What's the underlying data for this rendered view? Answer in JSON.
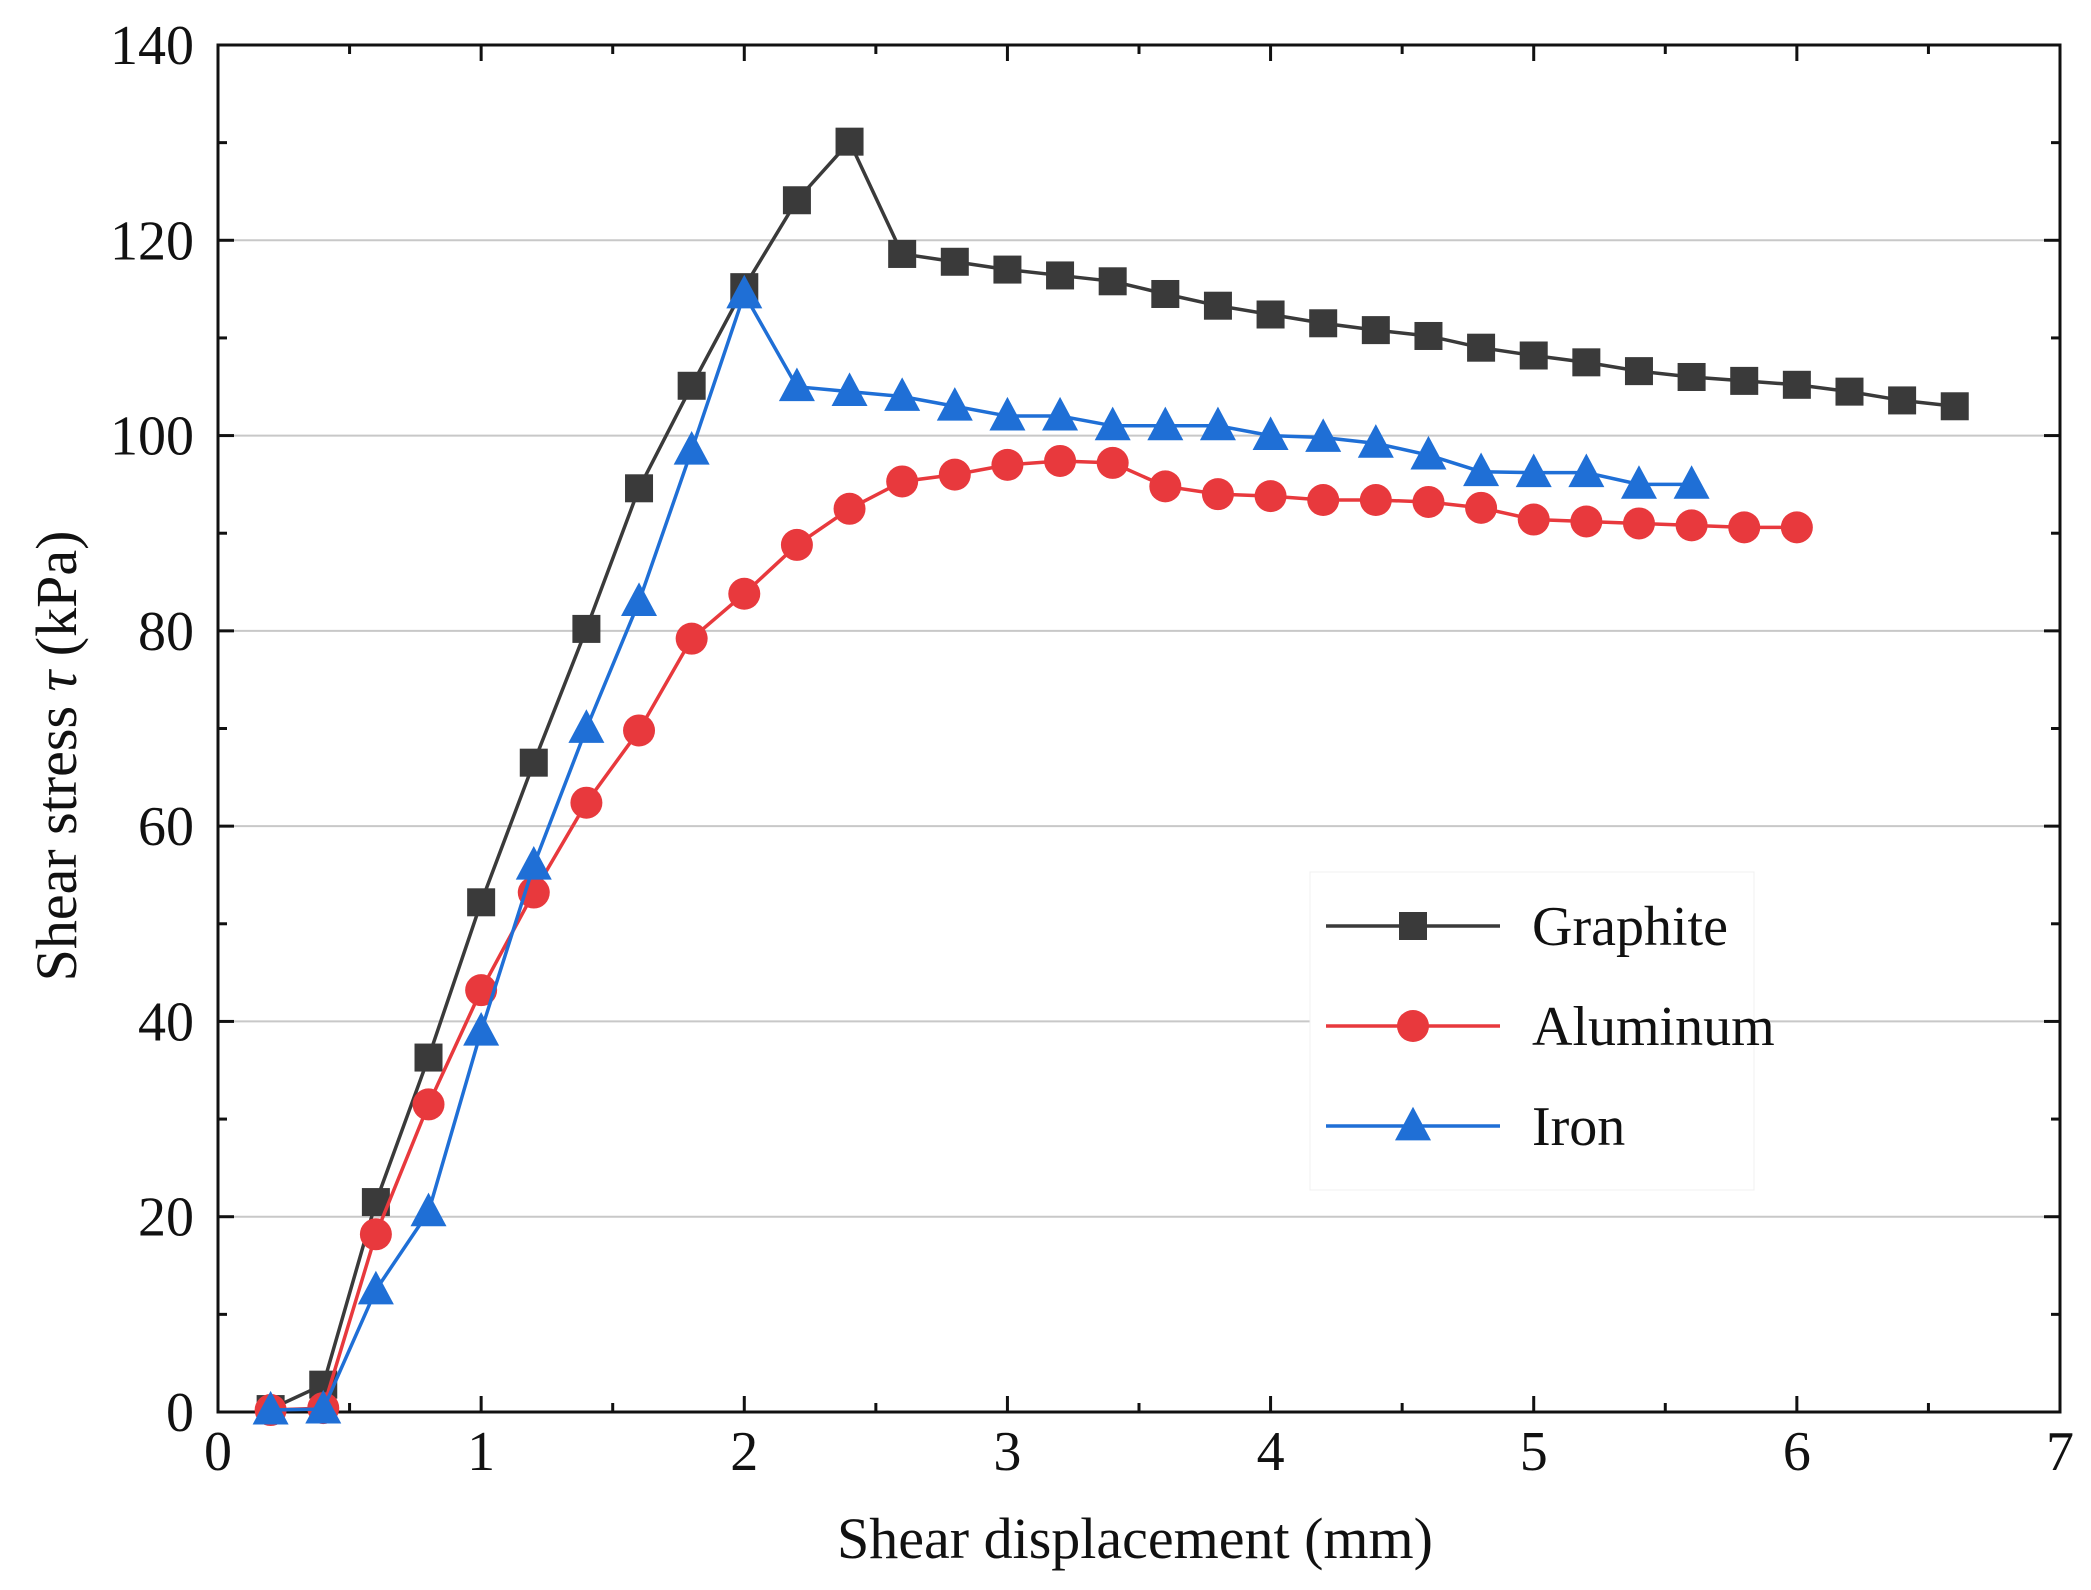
{
  "colors": {
    "Graphite": "#3a3a3a",
    "Aluminum": "#e8393d",
    "Iron": "#1f6fd6",
    "grid": "#c8c8c8",
    "axis": "#111111"
  },
  "chart_data": {
    "type": "line",
    "title": "",
    "xlabel": "Shear displacement (mm)",
    "ylabel_prefix": "Shear stress ",
    "ylabel_symbol": "τ",
    "ylabel_suffix": " (kPa)",
    "xlim": [
      0,
      7
    ],
    "ylim": [
      0,
      140
    ],
    "xticks": [
      0,
      1,
      2,
      3,
      4,
      5,
      6,
      7
    ],
    "yticks": [
      0,
      20,
      40,
      60,
      80,
      100,
      120,
      140
    ],
    "grid": "horizontal",
    "legend_position": "right-middle",
    "series": [
      {
        "name": "Graphite",
        "marker": "square",
        "x": [
          0.2,
          0.4,
          0.6,
          0.8,
          1.0,
          1.2,
          1.4,
          1.6,
          1.8,
          2.0,
          2.2,
          2.4,
          2.6,
          2.8,
          3.0,
          3.2,
          3.4,
          3.6,
          3.8,
          4.0,
          4.2,
          4.4,
          4.6,
          4.8,
          5.0,
          5.2,
          5.4,
          5.6,
          5.8,
          6.0,
          6.2,
          6.4,
          6.6
        ],
        "y": [
          0.3,
          2.8,
          21.5,
          36.3,
          52.2,
          66.5,
          80.2,
          94.6,
          105.1,
          115.2,
          124.1,
          130.1,
          118.6,
          117.8,
          117.0,
          116.4,
          115.8,
          114.5,
          113.3,
          112.4,
          111.5,
          110.8,
          110.2,
          109.0,
          108.2,
          107.5,
          106.6,
          106.0,
          105.6,
          105.2,
          104.5,
          103.6,
          103.0
        ]
      },
      {
        "name": "Aluminum",
        "marker": "circle",
        "x": [
          0.2,
          0.4,
          0.6,
          0.8,
          1.0,
          1.2,
          1.4,
          1.6,
          1.8,
          2.0,
          2.2,
          2.4,
          2.6,
          2.8,
          3.0,
          3.2,
          3.4,
          3.6,
          3.8,
          4.0,
          4.2,
          4.4,
          4.6,
          4.8,
          5.0,
          5.2,
          5.4,
          5.6,
          5.8,
          6.0
        ],
        "y": [
          0.2,
          0.4,
          18.2,
          31.5,
          43.2,
          53.2,
          62.4,
          69.8,
          79.2,
          83.8,
          88.8,
          92.5,
          95.3,
          96.0,
          97.0,
          97.4,
          97.2,
          94.8,
          94.0,
          93.8,
          93.4,
          93.4,
          93.2,
          92.6,
          91.4,
          91.2,
          91.0,
          90.8,
          90.6,
          90.6
        ]
      },
      {
        "name": "Iron",
        "marker": "triangle",
        "x": [
          0.2,
          0.4,
          0.6,
          0.8,
          1.0,
          1.2,
          1.4,
          1.6,
          1.8,
          2.0,
          2.2,
          2.4,
          2.6,
          2.8,
          3.0,
          3.2,
          3.4,
          3.6,
          3.8,
          4.0,
          4.2,
          4.4,
          4.6,
          4.8,
          5.0,
          5.2,
          5.4,
          5.6
        ],
        "y": [
          0.2,
          0.3,
          12.5,
          20.5,
          39.0,
          56.0,
          70.0,
          83.0,
          98.5,
          114.5,
          105.0,
          104.5,
          104.0,
          103.0,
          102.0,
          102.0,
          101.0,
          101.0,
          101.0,
          100.0,
          99.8,
          99.2,
          98.0,
          96.3,
          96.2,
          96.2,
          95.0,
          95.0
        ]
      }
    ]
  }
}
